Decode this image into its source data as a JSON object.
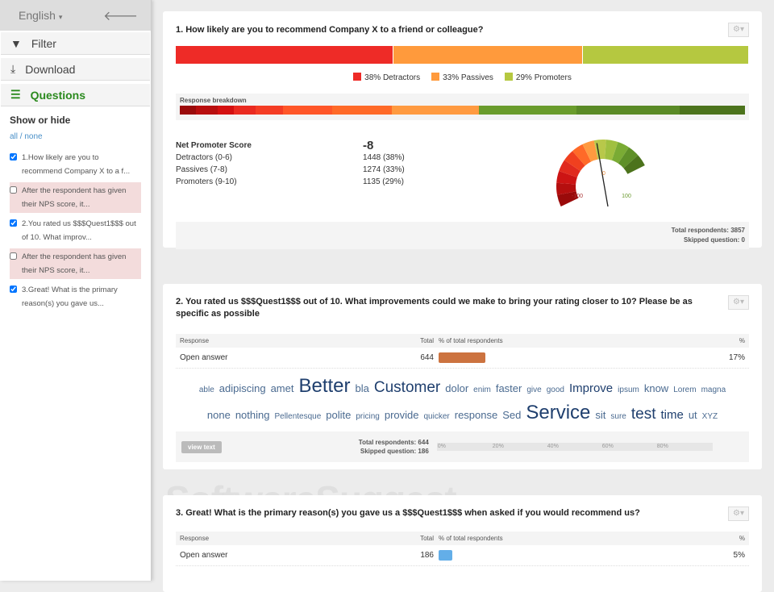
{
  "sidebar": {
    "language": "English",
    "filter": "Filter",
    "download": "Download",
    "questions": "Questions",
    "show_or_hide": "Show or hide",
    "all": "all",
    "sep": " / ",
    "none": "none",
    "items": [
      {
        "text": "1.How likely are you to recommend Company X to a f...",
        "checked": true
      },
      {
        "text": "After the respondent has given their NPS score, it...",
        "checked": false
      },
      {
        "text": "2.You rated us $$$Quest1$$$ out of 10. What improv...",
        "checked": true
      },
      {
        "text": "After the respondent has given their NPS score, it...",
        "checked": false
      },
      {
        "text": "3.Great! What is the primary reason(s) you gave us...",
        "checked": true
      }
    ]
  },
  "q1": {
    "title": "1.  How likely are you to recommend Company X to a friend or colleague?",
    "segments": [
      {
        "label": "38% Detractors",
        "pct": 38,
        "color": "#ee2b27"
      },
      {
        "label": "33% Passives",
        "pct": 33,
        "color": "#ff9a3c"
      },
      {
        "label": "29% Promoters",
        "pct": 29,
        "color": "#b5c840"
      }
    ],
    "breakdown_label": "Response breakdown",
    "breakdown": [
      {
        "w": 3,
        "c": "#9a0a0a"
      },
      {
        "w": 4,
        "c": "#b80e0e"
      },
      {
        "w": 3,
        "c": "#d41010"
      },
      {
        "w": 4,
        "c": "#ea2a20"
      },
      {
        "w": 5,
        "c": "#f43c24"
      },
      {
        "w": 9,
        "c": "#ff5628"
      },
      {
        "w": 11,
        "c": "#ff6a28"
      },
      {
        "w": 16,
        "c": "#ff9a40"
      },
      {
        "w": 18,
        "c": "#6a9c2c"
      },
      {
        "w": 19,
        "c": "#5a8a26"
      },
      {
        "w": 12,
        "c": "#4c731c"
      }
    ],
    "nps_label": "Net Promoter Score",
    "nps_value": "-8",
    "rows": [
      {
        "label": "Detractors (0-6)",
        "value": "1448 (38%)"
      },
      {
        "label": "Passives (7-8)",
        "value": "1274 (33%)"
      },
      {
        "label": "Promoters (9-10)",
        "value": "1135 (29%)"
      }
    ],
    "gauge": {
      "min": "-100",
      "zero": "0",
      "max": "100",
      "score": -8
    },
    "total": "Total respondents: 3857",
    "skipped": "Skipped question: 0"
  },
  "q2": {
    "title": "2.  You rated us $$$Quest1$$$ out of 10. What improvements could we make to bring your rating closer to 10? Please be as specific as possible",
    "headers": {
      "response": "Response",
      "total": "Total",
      "pct_of": "% of total respondents",
      "pct": "%"
    },
    "row": {
      "response": "Open answer",
      "total": "644",
      "pct": "17%",
      "value": 17,
      "color": "#cc7340"
    },
    "cloud": [
      {
        "w": "able",
        "s": 1
      },
      {
        "w": "adipiscing",
        "s": 2
      },
      {
        "w": "amet",
        "s": 2
      },
      {
        "w": "Better",
        "s": 5
      },
      {
        "w": "bla",
        "s": 2
      },
      {
        "w": "Customer",
        "s": 4
      },
      {
        "w": "dolor",
        "s": 2
      },
      {
        "w": "enim",
        "s": 1
      },
      {
        "w": "faster",
        "s": 2
      },
      {
        "w": "give",
        "s": 1
      },
      {
        "w": "good",
        "s": 1
      },
      {
        "w": "Improve",
        "s": 3
      },
      {
        "w": "ipsum",
        "s": 1
      },
      {
        "w": "know",
        "s": 2
      },
      {
        "w": "Lorem",
        "s": 1
      },
      {
        "w": "magna",
        "s": 1
      },
      {
        "w": "none",
        "s": 2
      },
      {
        "w": "nothing",
        "s": 2
      },
      {
        "w": "Pellentesque",
        "s": 1
      },
      {
        "w": "polite",
        "s": 2
      },
      {
        "w": "pricing",
        "s": 1
      },
      {
        "w": "provide",
        "s": 2
      },
      {
        "w": "quicker",
        "s": 1
      },
      {
        "w": "response",
        "s": 2
      },
      {
        "w": "Sed",
        "s": 2
      },
      {
        "w": "Service",
        "s": 5
      },
      {
        "w": "sit",
        "s": 2
      },
      {
        "w": "sure",
        "s": 1
      },
      {
        "w": "test",
        "s": 4
      },
      {
        "w": "time",
        "s": 3
      },
      {
        "w": "ut",
        "s": 2
      },
      {
        "w": "XYZ",
        "s": 1
      }
    ],
    "view_text": "view text",
    "total": "Total respondents: 644",
    "skipped": "Skipped question: 186",
    "axis": [
      "0%",
      "20%",
      "40%",
      "60%",
      "80%"
    ]
  },
  "q3": {
    "title": "3.  Great! What is the primary reason(s) you gave us a $$$Quest1$$$ when asked if you would recommend us?",
    "headers": {
      "response": "Response",
      "total": "Total",
      "pct_of": "% of total respondents",
      "pct": "%"
    },
    "row": {
      "response": "Open answer",
      "total": "186",
      "pct": "5%",
      "value": 5,
      "color": "#63aee8"
    }
  },
  "watermark": "SoftwareSuggest.com"
}
